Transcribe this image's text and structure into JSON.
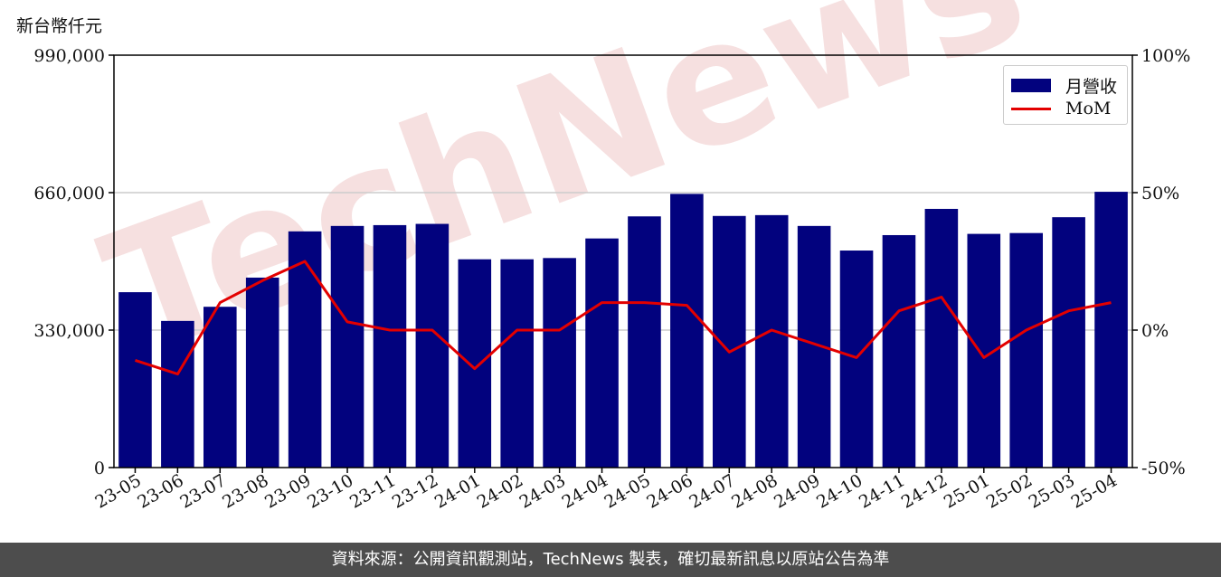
{
  "unit_label": "新台幣仟元",
  "footer_text": "資料來源：公開資訊觀測站，TechNews 製表，確切最新訊息以原站公告為準",
  "watermark_text": "TechNews",
  "colors": {
    "bar": "#02027e",
    "line": "#e30000",
    "grid": "#cccccc",
    "footer_bg": "#4d4d4d",
    "watermark": "#f3d6d6"
  },
  "chart_data": {
    "type": "bar",
    "categories": [
      "23-05",
      "23-06",
      "23-07",
      "23-08",
      "23-09",
      "23-10",
      "23-11",
      "23-12",
      "24-01",
      "24-02",
      "24-03",
      "24-04",
      "24-05",
      "24-06",
      "24-07",
      "24-08",
      "24-09",
      "24-10",
      "24-11",
      "24-12",
      "25-01",
      "25-02",
      "25-03",
      "25-04"
    ],
    "series": [
      {
        "name": "月營收",
        "axis": "left",
        "type": "bar",
        "values": [
          421000,
          352000,
          386000,
          456000,
          567000,
          580000,
          582000,
          585000,
          500000,
          500000,
          503000,
          550000,
          603000,
          657000,
          604000,
          606000,
          580000,
          521000,
          558000,
          621000,
          561000,
          563000,
          601000,
          662000
        ]
      },
      {
        "name": "MoM",
        "axis": "right",
        "type": "line",
        "values": [
          -11,
          -16,
          10,
          18,
          25,
          3,
          0,
          0,
          -14,
          0,
          0,
          10,
          10,
          9,
          -8,
          0,
          -5,
          -10,
          7,
          12,
          -10,
          0,
          7,
          10
        ]
      }
    ],
    "y_left": {
      "lim": [
        0,
        990000
      ],
      "ticks": [
        0,
        330000,
        660000,
        990000
      ],
      "tick_labels": [
        "0",
        "330,000",
        "660,000",
        "990,000"
      ]
    },
    "y_right": {
      "lim": [
        -50,
        100
      ],
      "ticks": [
        -50,
        0,
        50,
        100
      ],
      "tick_labels": [
        "-50%",
        "0%",
        "50%",
        "100%"
      ]
    },
    "grid": "horizontal",
    "legend_position": "top-right"
  }
}
